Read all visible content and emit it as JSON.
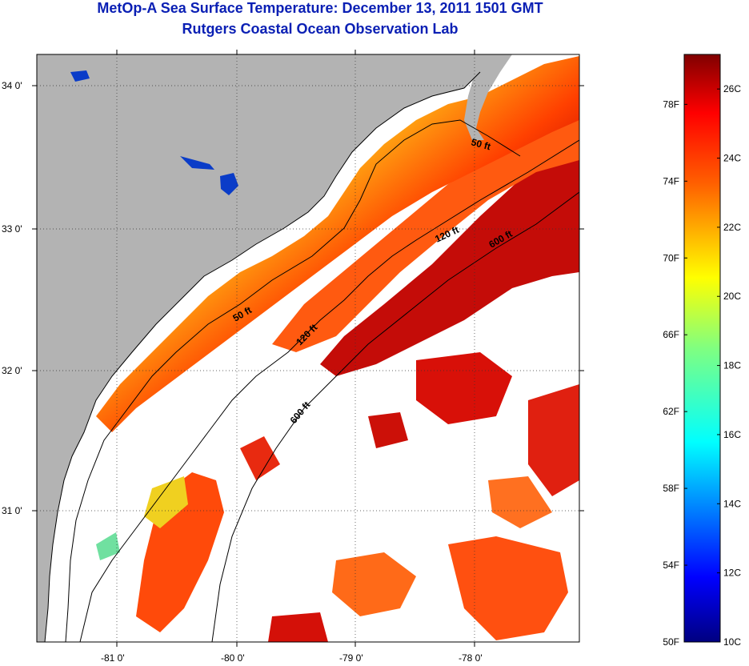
{
  "header": {
    "title": "MetOp-A Sea Surface Temperature:  December 13, 2011 1501 GMT",
    "subtitle": "Rutgers Coastal Ocean Observation Lab"
  },
  "map": {
    "lat_labels": [
      "34 0'",
      "33 0'",
      "32 0'",
      "31 0'"
    ],
    "lon_labels": [
      "-81 0'",
      "-80 0'",
      "-79 0'",
      "-78 0'"
    ],
    "lat_range": [
      30.2,
      34.2
    ],
    "lon_range": [
      -81.7,
      -77.05
    ],
    "contours": [
      {
        "label": "50 ft"
      },
      {
        "label": "120 ft"
      },
      {
        "label": "600 ft"
      }
    ],
    "colors": {
      "land": "#b3b3b3",
      "cloud": "#ffffff"
    }
  },
  "colorbar": {
    "fahrenheit_labels": [
      "50F",
      "54F",
      "58F",
      "62F",
      "66F",
      "70F",
      "74F",
      "78F"
    ],
    "celsius_labels": [
      "10C",
      "12C",
      "14C",
      "16C",
      "18C",
      "20C",
      "22C",
      "24C",
      "26C"
    ],
    "range_c": [
      10,
      27
    ],
    "colormap": "jet"
  }
}
